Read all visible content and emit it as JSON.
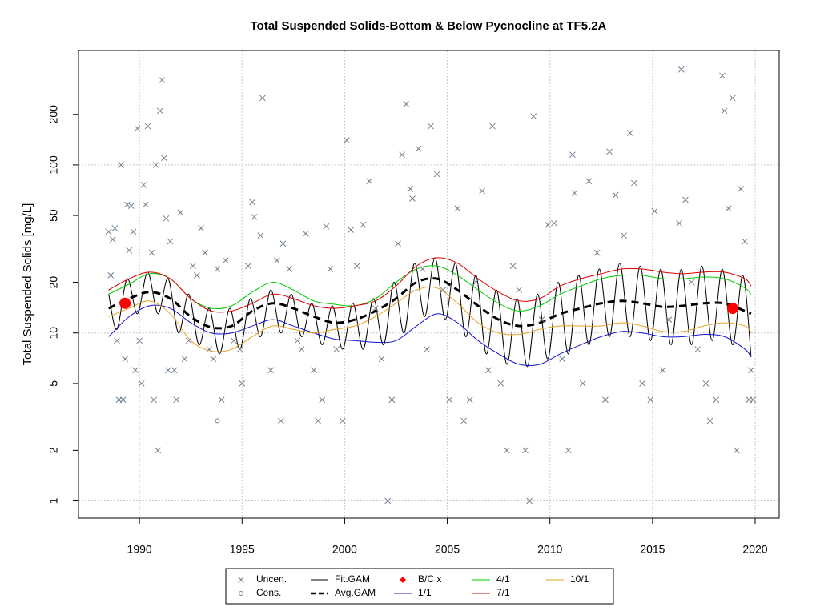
{
  "chart_data": {
    "type": "line",
    "title": "Total Suspended Solids-Bottom & Below Pycnocline at TF5.2A",
    "y_label": "Total Suspended Solids [mg/L]",
    "y_log": true,
    "xlim": [
      1987.03,
      2021.17
    ],
    "ylim": [
      0.79,
      480
    ],
    "xticks": [
      1990,
      1995,
      2000,
      2005,
      2010,
      2015,
      2020
    ],
    "yticks": [
      1,
      2,
      5,
      10,
      20,
      50,
      100,
      200
    ],
    "xgrid": true,
    "ygrid": [
      1,
      10,
      100
    ],
    "series": [
      {
        "name": "Uncen.",
        "color": "#708090",
        "kind": "points",
        "marker": "x",
        "x": [
          1988.5,
          1988.6,
          1988.7,
          1988.8,
          1988.9,
          1989.0,
          1989.1,
          1989.2,
          1989.3,
          1989.4,
          1989.5,
          1989.6,
          1989.7,
          1989.8,
          1989.9,
          1990.0,
          1990.1,
          1990.2,
          1990.3,
          1990.4,
          1990.6,
          1990.7,
          1990.8,
          1990.9,
          1991.0,
          1991.1,
          1991.2,
          1991.3,
          1991.4,
          1991.5,
          1991.7,
          1991.8,
          1992.0,
          1992.2,
          1992.4,
          1992.6,
          1992.8,
          1993.0,
          1993.2,
          1993.4,
          1993.6,
          1993.8,
          1994.0,
          1994.2,
          1994.6,
          1994.9,
          1995.0,
          1995.3,
          1995.5,
          1995.6,
          1995.9,
          1996.0,
          1996.4,
          1996.7,
          1996.9,
          1997.0,
          1997.3,
          1997.7,
          1997.9,
          1998.1,
          1998.5,
          1998.7,
          1998.9,
          1999.1,
          1999.3,
          1999.6,
          1999.9,
          2000.1,
          2000.3,
          2000.6,
          2000.9,
          2001.2,
          2001.5,
          2001.8,
          2002.1,
          2002.3,
          2002.6,
          2002.8,
          2003.0,
          2003.2,
          2003.3,
          2003.6,
          2003.8,
          2004.0,
          2004.2,
          2004.5,
          2004.8,
          2005.1,
          2005.5,
          2005.8,
          2006.1,
          2006.4,
          2006.7,
          2007.0,
          2007.2,
          2007.6,
          2007.9,
          2008.2,
          2008.5,
          2008.8,
          2009.0,
          2009.2,
          2009.6,
          2009.9,
          2010.2,
          2010.6,
          2010.9,
          2011.1,
          2011.2,
          2011.6,
          2011.9,
          2012.3,
          2012.7,
          2012.9,
          2013.2,
          2013.6,
          2013.9,
          2014.1,
          2014.5,
          2014.9,
          2015.1,
          2015.5,
          2015.8,
          2016.3,
          2016.4,
          2016.6,
          2016.9,
          2017.2,
          2017.6,
          2017.8,
          2018.1,
          2018.4,
          2018.5,
          2018.7,
          2018.9,
          2019.1,
          2019.3,
          2019.5,
          2019.7,
          2019.8,
          2019.9
        ],
        "values": [
          40,
          22,
          36,
          42,
          9,
          4,
          100,
          4,
          7,
          58,
          31,
          57,
          40,
          6,
          165,
          9,
          5,
          76,
          58,
          170,
          30,
          4,
          100,
          2,
          210,
          320,
          110,
          48,
          6,
          35,
          6,
          4,
          52,
          7,
          9,
          25,
          22,
          42,
          30,
          8,
          7,
          24,
          4,
          27,
          9,
          8,
          5,
          25,
          60,
          49,
          38,
          250,
          6,
          27,
          3,
          34,
          24,
          9,
          8,
          39,
          6,
          3,
          4,
          43,
          24,
          8,
          3,
          140,
          41,
          25,
          44,
          80,
          14,
          7,
          1,
          4,
          34,
          115,
          230,
          72,
          63,
          125,
          24,
          8,
          170,
          88,
          18,
          4,
          55,
          3,
          4,
          20,
          70,
          6,
          170,
          5,
          2,
          25,
          18,
          2,
          1,
          195,
          12,
          44,
          45,
          7,
          2,
          115,
          68,
          5,
          80,
          30,
          4,
          120,
          66,
          38,
          155,
          78,
          5,
          4,
          53,
          6,
          12,
          45,
          370,
          62,
          20,
          8,
          5,
          3,
          4,
          340,
          210,
          55,
          250,
          2,
          72,
          35,
          4,
          6,
          4
        ]
      },
      {
        "name": "Cens.",
        "color": "#708090",
        "kind": "points",
        "marker": "o",
        "x": [
          1993.8
        ],
        "values": [
          3
        ]
      },
      {
        "name": "Fit.GAM",
        "color": "#000000",
        "kind": "line",
        "x": [
          1988.5,
          1988.9,
          1989.4,
          1989.9,
          1990.4,
          1990.9,
          1991.4,
          1991.9,
          1992.4,
          1992.9,
          1993.4,
          1993.9,
          1994.4,
          1994.9,
          1995.4,
          1995.9,
          1996.4,
          1996.9,
          1997.4,
          1997.9,
          1998.4,
          1998.9,
          1999.4,
          1999.9,
          2000.4,
          2000.9,
          2001.4,
          2001.9,
          2002.4,
          2002.9,
          2003.4,
          2003.9,
          2004.4,
          2004.9,
          2005.4,
          2005.9,
          2006.4,
          2006.9,
          2007.4,
          2007.9,
          2008.4,
          2008.9,
          2009.4,
          2009.9,
          2010.4,
          2010.9,
          2011.4,
          2011.9,
          2012.4,
          2012.9,
          2013.4,
          2013.9,
          2014.4,
          2014.9,
          2015.4,
          2015.9,
          2016.4,
          2016.9,
          2017.4,
          2017.9,
          2018.4,
          2018.9,
          2019.4,
          2019.8
        ],
        "values": [
          17,
          10.5,
          21,
          13,
          23,
          13,
          21,
          10,
          17,
          8.5,
          14,
          7.5,
          14,
          8,
          16,
          9.5,
          18,
          10,
          17,
          9.5,
          15,
          8.5,
          14.5,
          8,
          15,
          8,
          16,
          8.5,
          20,
          10,
          26,
          12.5,
          28,
          12,
          26,
          9.5,
          22,
          7.5,
          18,
          6.5,
          16,
          6.3,
          17,
          7,
          20,
          7.5,
          22,
          8.5,
          24,
          9.5,
          26,
          9.5,
          25,
          9,
          24,
          8.5,
          24,
          8.5,
          25,
          9,
          24,
          8.5,
          22,
          7.2
        ]
      },
      {
        "name": "Avg.GAM",
        "color": "#000000",
        "kind": "line",
        "dash": true,
        "x": [
          1988.5,
          1989.5,
          1990.5,
          1991.5,
          1992.5,
          1993.5,
          1994.5,
          1995.5,
          1996.5,
          1997.5,
          1998.5,
          1999.5,
          2000.5,
          2001.5,
          2002.5,
          2003.5,
          2004.5,
          2005.5,
          2006.5,
          2007.5,
          2008.5,
          2009.5,
          2010.5,
          2011.5,
          2012.5,
          2013.5,
          2014.5,
          2015.5,
          2016.5,
          2017.5,
          2018.5,
          2019.5,
          2019.8
        ],
        "values": [
          14,
          16,
          17.5,
          16,
          12.5,
          10.8,
          11,
          13.5,
          15,
          14,
          12.5,
          11.5,
          12,
          13.5,
          16,
          20,
          21,
          18,
          14.5,
          12,
          11,
          11.5,
          13,
          14,
          15,
          15.5,
          15,
          14.3,
          14.5,
          15,
          15,
          13.5,
          13
        ]
      },
      {
        "name": "B/C x",
        "color": "#ff0000",
        "kind": "points",
        "marker": "dot",
        "x": [
          1989.3,
          2018.9
        ],
        "values": [
          15,
          14
        ]
      },
      {
        "name": "1/1",
        "color": "#1414d2",
        "kind": "line",
        "x": [
          1988.5,
          1989.5,
          1990.5,
          1991.5,
          1992.5,
          1993.5,
          1994.5,
          1995.5,
          1996.5,
          1997.5,
          1998.5,
          1999.5,
          2000.5,
          2001.5,
          2002.5,
          2003.5,
          2004.5,
          2005.5,
          2006.5,
          2007.5,
          2008.5,
          2009.5,
          2010.5,
          2011.5,
          2012.5,
          2013.5,
          2014.5,
          2015.5,
          2016.5,
          2017.5,
          2018.5,
          2019.5,
          2019.8
        ],
        "values": [
          9.5,
          12.5,
          14.5,
          14,
          11.5,
          10,
          10,
          11,
          12,
          11,
          10,
          9.2,
          9,
          8.8,
          9,
          11,
          13,
          11.5,
          9,
          7.5,
          6.5,
          6.5,
          7.5,
          8.5,
          9.5,
          10.2,
          10,
          9.5,
          9.5,
          9.8,
          9.5,
          8,
          7.2
        ]
      },
      {
        "name": "4/1",
        "color": "#00cc00",
        "kind": "line",
        "x": [
          1988.5,
          1989.5,
          1990.5,
          1991.5,
          1992.5,
          1993.5,
          1994.5,
          1995.5,
          1996.5,
          1997.5,
          1998.5,
          1999.5,
          2000.5,
          2001.5,
          2002.5,
          2003.5,
          2004.5,
          2005.5,
          2006.5,
          2007.5,
          2008.5,
          2009.5,
          2010.5,
          2011.5,
          2012.5,
          2013.5,
          2014.5,
          2015.5,
          2016.5,
          2017.5,
          2018.5,
          2019.5,
          2019.8
        ],
        "values": [
          17,
          19.5,
          22.5,
          21,
          16,
          14,
          14.5,
          17.5,
          20,
          18,
          15.5,
          14.8,
          14.5,
          16,
          20,
          24,
          25,
          22,
          18,
          15,
          13.5,
          14.5,
          17,
          19,
          21,
          22,
          22,
          21,
          21,
          21.5,
          21,
          18.5,
          17
        ]
      },
      {
        "name": "7/1",
        "color": "#dd0000",
        "kind": "line",
        "x": [
          1988.5,
          1989.5,
          1990.5,
          1991.5,
          1992.5,
          1993.5,
          1994.5,
          1995.5,
          1996.5,
          1997.5,
          1998.5,
          1999.5,
          2000.5,
          2001.5,
          2002.5,
          2003.5,
          2004.5,
          2005.5,
          2006.5,
          2007.5,
          2008.5,
          2009.5,
          2010.5,
          2011.5,
          2012.5,
          2013.5,
          2014.5,
          2015.5,
          2016.5,
          2017.5,
          2018.5,
          2019.5,
          2019.8
        ],
        "values": [
          18,
          21,
          23,
          21,
          16,
          13.5,
          13.5,
          15,
          17,
          16,
          14.5,
          14,
          14.5,
          15.5,
          19,
          25,
          28,
          26,
          21,
          17.5,
          15.5,
          16,
          19,
          21,
          22.5,
          24,
          24,
          23,
          22.5,
          23,
          23,
          21,
          19
        ]
      },
      {
        "name": "10/1",
        "color": "#e8a020",
        "kind": "line",
        "x": [
          1988.5,
          1989.5,
          1990.5,
          1991.5,
          1992.5,
          1993.5,
          1994.5,
          1995.5,
          1996.5,
          1997.5,
          1998.5,
          1999.5,
          2000.5,
          2001.5,
          2002.5,
          2003.5,
          2004.5,
          2005.5,
          2006.5,
          2007.5,
          2008.5,
          2009.5,
          2010.5,
          2011.5,
          2012.5,
          2013.5,
          2014.5,
          2015.5,
          2016.5,
          2017.5,
          2018.5,
          2019.5,
          2019.8
        ],
        "values": [
          12.5,
          14,
          15.5,
          13,
          9,
          7.8,
          8,
          9.5,
          11,
          10.5,
          10,
          10.5,
          11,
          12.5,
          15,
          18,
          18.5,
          15,
          11.5,
          10,
          9.8,
          10.5,
          11,
          11,
          11,
          11.5,
          11,
          10.2,
          10.2,
          11,
          11.5,
          11,
          10
        ]
      }
    ]
  }
}
